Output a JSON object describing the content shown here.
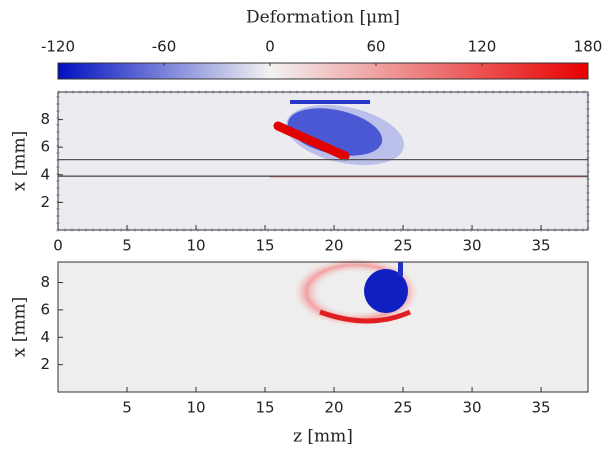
{
  "chart_data": [
    {
      "type": "colorbar",
      "title": "Deformation [μm]",
      "xlim": [
        -120,
        180
      ],
      "xticks": [
        -120,
        -60,
        0,
        60,
        120,
        180
      ],
      "colors": [
        "#0010c0",
        "#f2f2f2",
        "#e80000"
      ]
    },
    {
      "type": "heatmap",
      "ylabel": "x [mm]",
      "xlim": [
        0,
        38.4
      ],
      "xticks": [
        0,
        5,
        10,
        15,
        20,
        25,
        30,
        35
      ],
      "ylim": [
        0,
        10
      ],
      "yticks": [
        2,
        4,
        6,
        8
      ],
      "hlines": [
        5.1,
        3.9
      ]
    },
    {
      "type": "heatmap",
      "xlabel": "z [mm]",
      "ylabel": "x [mm]",
      "xlim": [
        0,
        38.4
      ],
      "xticks": [
        5,
        10,
        15,
        20,
        25,
        30,
        35
      ],
      "ylim": [
        0,
        9.5
      ],
      "yticks": [
        2,
        4,
        6,
        8
      ]
    }
  ]
}
